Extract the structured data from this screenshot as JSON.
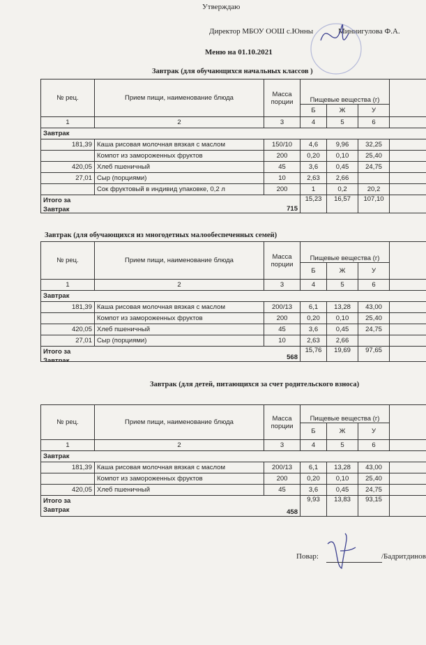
{
  "header": {
    "approve": "Утверждаю",
    "director": "Директор МБОУ ООШ с.Юнны",
    "director_name": "Миннигулова Ф.А.",
    "menu_title": "Меню на 01.10.2021"
  },
  "tables": [
    {
      "title": "Завтрак (для обучающихся  начальных классов )",
      "head": {
        "no": "№ рец.",
        "name": "Прием пищи, наименование блюда",
        "mass": "Масса порции",
        "nutrients": "Пищевые вещества (г)",
        "b": "Б",
        "zh": "Ж",
        "u": "У"
      },
      "numbers": [
        1,
        2,
        3,
        4,
        5,
        6
      ],
      "section": "Завтрак",
      "rows": [
        [
          "181,39",
          "Каша рисовая молочная вязкая с маслом",
          "150/10",
          "4,6",
          "9,96",
          "32,25"
        ],
        [
          null,
          "Компот из замороженных фруктов",
          "200",
          "0,20",
          "0,10",
          "25,40"
        ],
        [
          "420,05",
          "Хлеб пшеничный",
          "45",
          "3,6",
          "0,45",
          "24,75"
        ],
        [
          "27,01",
          "Сыр (порциями)",
          "10",
          "2,63",
          "2,66",
          null
        ],
        [
          null,
          "Сок фруктовый в индивид упаковке, 0,2 л",
          "200",
          "1",
          "0,2",
          "20,2"
        ]
      ],
      "total": {
        "label": "Итого за Завтрак",
        "mass": "715",
        "b": "15,23",
        "zh": "16,57",
        "u": "107,10"
      }
    },
    {
      "title": "Завтрак (для обучающихся  из  многодетных малообеспеченных семей)",
      "head": {
        "no": "№ рец.",
        "name": "Прием пищи, наименование блюда",
        "mass": "Масса порции",
        "nutrients": "Пищевые вещества (г)",
        "b": "Б",
        "zh": "Ж",
        "u": "У"
      },
      "numbers": [
        1,
        2,
        3,
        4,
        5,
        6
      ],
      "section": "Завтрак",
      "rows": [
        [
          "181,39",
          "Каша рисовая молочная вязкая с маслом",
          "200/13",
          "6,1",
          "13,28",
          "43,00"
        ],
        [
          null,
          "Компот из замороженных фруктов",
          "200",
          "0,20",
          "0,10",
          "25,40"
        ],
        [
          "420,05",
          "Хлеб пшеничный",
          "45",
          "3,6",
          "0,45",
          "24,75"
        ],
        [
          "27,01",
          "Сыр (порциями)",
          "10",
          "2,63",
          "2,66",
          null
        ]
      ],
      "total": {
        "label": "Итого за Завтрак",
        "mass": "568",
        "b": "15,76",
        "zh": "19,69",
        "u": "97,65"
      }
    },
    {
      "title": "Завтрак (для детей, питающихся за счет  родительского взноса)",
      "head": {
        "no": "№ рец.",
        "name": "Прием пищи, наименование блюда",
        "mass": "Масса порции",
        "nutrients": "Пищевые вещества (г)",
        "b": "Б",
        "zh": "Ж",
        "u": "У"
      },
      "numbers": [
        1,
        2,
        3,
        4,
        5,
        6
      ],
      "section": "Завтрак",
      "rows": [
        [
          "181,39",
          "Каша рисовая молочная вязкая с маслом",
          "200/13",
          "6,1",
          "13,28",
          "43,00"
        ],
        [
          null,
          "Компот из замороженных фруктов",
          "200",
          "0,20",
          "0,10",
          "25,40"
        ],
        [
          "420,05",
          "Хлеб пшеничный",
          "45",
          "3,6",
          "0,45",
          "24,75"
        ]
      ],
      "total": {
        "label": "Итого за Завтрак",
        "mass": "458",
        "b": "9,93",
        "zh": "13,83",
        "u": "93,15"
      }
    }
  ],
  "footer": {
    "cook": "Повар:",
    "cook_name": "/Бадритдинова З.Р"
  }
}
